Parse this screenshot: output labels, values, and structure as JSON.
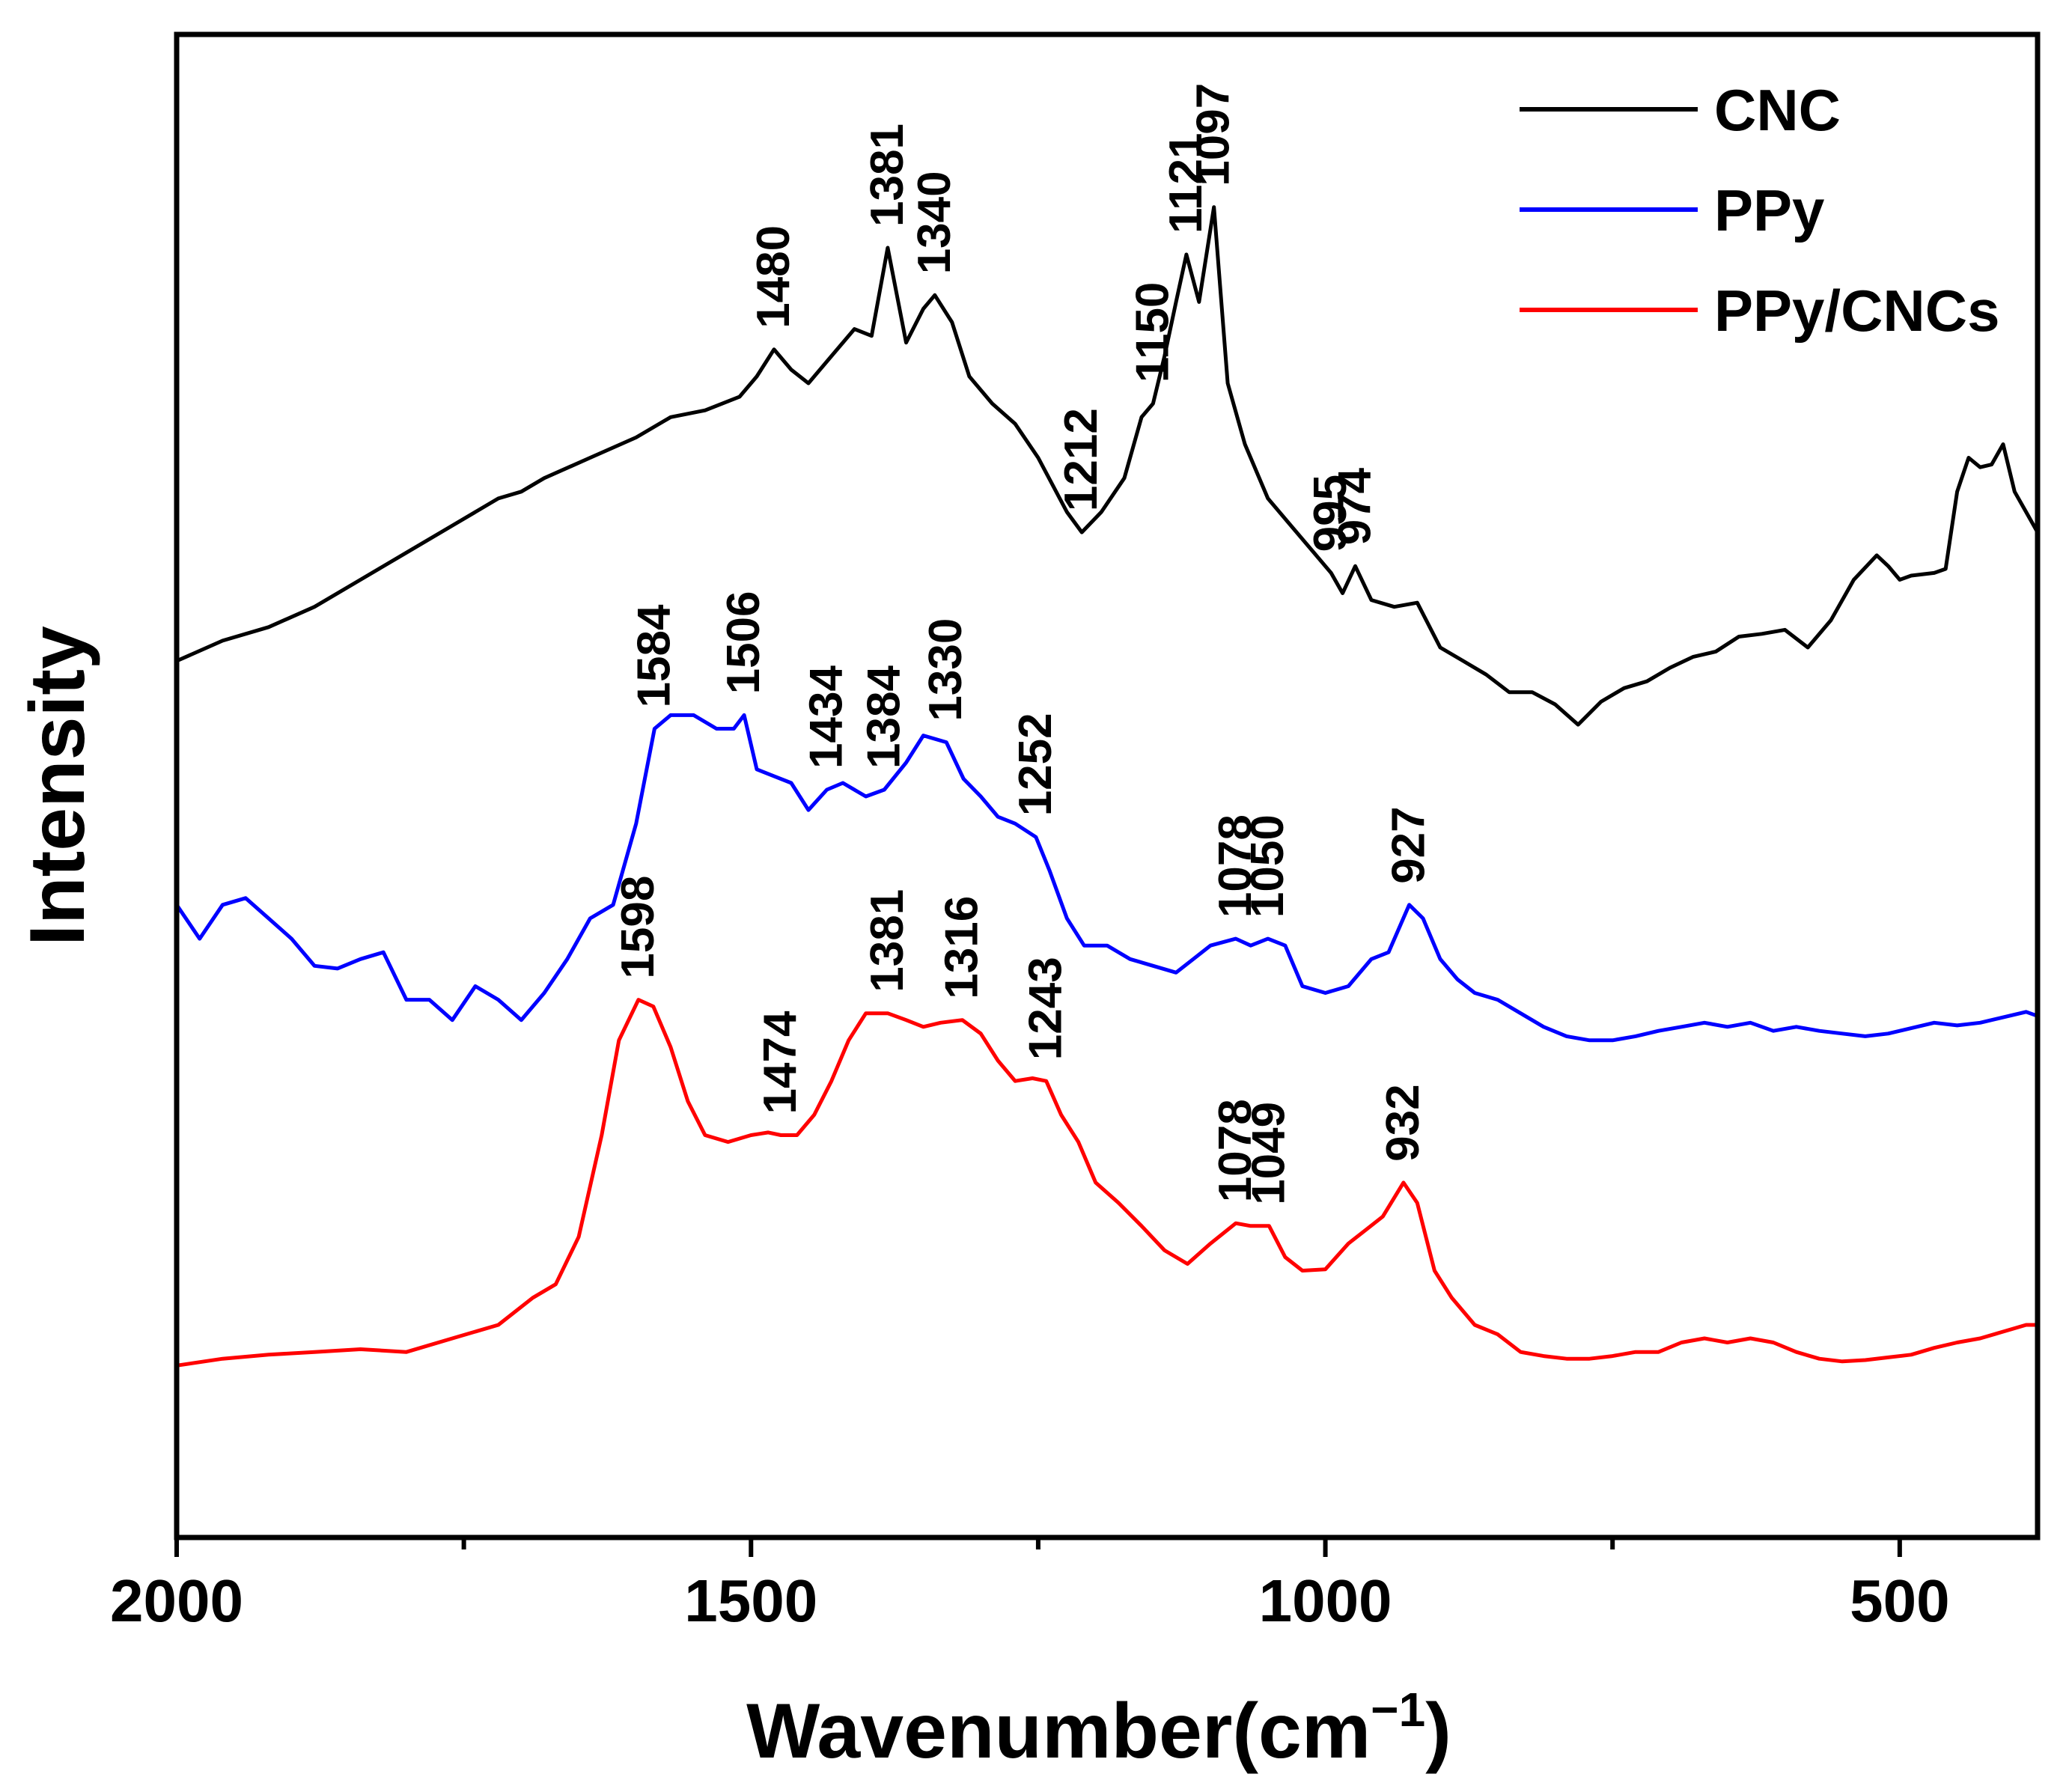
{
  "chart_data": {
    "type": "line",
    "title": "",
    "xlabel": "Wavenumber(cm",
    "xlabel_unit_exponent": "−1",
    "xlabel_close": ")",
    "ylabel": "Intensity",
    "xlim": [
      2000,
      380
    ],
    "ylim": [
      0,
      100
    ],
    "x_reversed": true,
    "xticks_major": [
      2000,
      1500,
      1000,
      500
    ],
    "xtick_labels": [
      "2000",
      "1500",
      "1000",
      "500"
    ],
    "xticks_minor": [
      1750,
      1250,
      750
    ],
    "grid": false,
    "legend_position": "top-right",
    "y_ticks_shown": false,
    "series": [
      {
        "name": "CNC",
        "color": "#000000",
        "x": [
          2000,
          1960,
          1920,
          1880,
          1840,
          1800,
          1760,
          1720,
          1700,
          1680,
          1640,
          1600,
          1570,
          1540,
          1510,
          1495,
          1480,
          1465,
          1450,
          1430,
          1410,
          1395,
          1381,
          1365,
          1350,
          1340,
          1325,
          1310,
          1290,
          1270,
          1250,
          1225,
          1212,
          1195,
          1175,
          1160,
          1150,
          1140,
          1130,
          1121,
          1110,
          1097,
          1085,
          1070,
          1050,
          1030,
          1010,
          995,
          985,
          974,
          960,
          940,
          920,
          900,
          880,
          860,
          840,
          820,
          800,
          780,
          760,
          740,
          720,
          700,
          680,
          660,
          640,
          620,
          600,
          580,
          560,
          540,
          520,
          510,
          500,
          490,
          470,
          460,
          450,
          440,
          430,
          420,
          410,
          400,
          390,
          380
        ],
        "values": [
          59.5,
          61,
          62,
          63.5,
          65.5,
          67.5,
          69.5,
          71.5,
          72,
          73,
          74.5,
          76,
          77.5,
          78,
          79,
          80.5,
          82.5,
          81,
          80,
          82,
          84,
          83.5,
          90,
          83,
          85.5,
          86.5,
          84.5,
          80.5,
          78.5,
          77,
          74.5,
          70.5,
          69,
          70.5,
          73,
          77.5,
          78.5,
          82,
          86,
          89.5,
          86,
          93,
          80,
          75.5,
          71.5,
          69.5,
          67.5,
          66,
          64.5,
          66.5,
          64,
          63.5,
          63.8,
          60.5,
          59.5,
          58.5,
          57.2,
          57.2,
          56.3,
          54.8,
          56.5,
          57.5,
          58,
          59,
          59.8,
          60.2,
          61.3,
          61.5,
          61.8,
          60.5,
          62.5,
          65.5,
          67.3,
          66.5,
          65.5,
          65.8,
          66,
          66.3,
          72,
          74.5,
          73.8,
          74,
          75.5,
          72,
          70.5,
          69
        ]
      },
      {
        "name": "PPy",
        "color": "#0000ff",
        "x": [
          2000,
          1980,
          1960,
          1940,
          1920,
          1900,
          1880,
          1860,
          1840,
          1820,
          1800,
          1780,
          1760,
          1740,
          1720,
          1700,
          1680,
          1660,
          1640,
          1620,
          1600,
          1584,
          1570,
          1550,
          1530,
          1515,
          1506,
          1495,
          1480,
          1465,
          1450,
          1434,
          1420,
          1400,
          1384,
          1365,
          1350,
          1330,
          1315,
          1300,
          1285,
          1270,
          1252,
          1240,
          1225,
          1210,
          1190,
          1170,
          1150,
          1130,
          1115,
          1100,
          1078,
          1065,
          1050,
          1035,
          1020,
          1000,
          980,
          960,
          945,
          927,
          915,
          900,
          885,
          870,
          850,
          830,
          810,
          790,
          770,
          750,
          730,
          710,
          690,
          670,
          650,
          630,
          610,
          590,
          570,
          550,
          530,
          510,
          490,
          470,
          450,
          430,
          410,
          390,
          380
        ],
        "values": [
          41.5,
          39,
          41.5,
          42,
          40.5,
          39,
          37,
          36.8,
          37.5,
          38,
          34.5,
          34.5,
          33,
          35.5,
          34.5,
          33,
          35,
          37.5,
          40.5,
          41.5,
          47.5,
          54.5,
          55.5,
          55.5,
          54.5,
          54.5,
          55.5,
          51.5,
          51,
          50.5,
          48.5,
          50,
          50.5,
          49.5,
          50,
          52,
          54,
          53.5,
          50.8,
          49.5,
          48,
          47.5,
          46.5,
          44,
          40.5,
          38.5,
          38.5,
          37.5,
          37,
          36.5,
          37.5,
          38.5,
          39,
          38.5,
          39,
          38.5,
          35.5,
          35,
          35.5,
          37.5,
          38,
          41.5,
          40.5,
          37.5,
          36,
          35,
          34.5,
          33.5,
          32.5,
          31.8,
          31.5,
          31.5,
          31.8,
          32.2,
          32.5,
          32.8,
          32.5,
          32.8,
          32.2,
          32.5,
          32.2,
          32,
          31.8,
          32,
          32.4,
          32.8,
          32.6,
          32.8,
          33.2,
          33.6,
          33.3
        ]
      },
      {
        "name": "PPy/CNCs",
        "color": "#ff0000",
        "x": [
          2000,
          1960,
          1920,
          1880,
          1840,
          1800,
          1760,
          1720,
          1690,
          1670,
          1650,
          1630,
          1615,
          1598,
          1585,
          1570,
          1555,
          1540,
          1520,
          1500,
          1485,
          1474,
          1460,
          1445,
          1430,
          1415,
          1400,
          1381,
          1365,
          1350,
          1335,
          1316,
          1300,
          1285,
          1270,
          1255,
          1243,
          1230,
          1215,
          1200,
          1180,
          1160,
          1140,
          1120,
          1100,
          1078,
          1065,
          1049,
          1035,
          1020,
          1000,
          980,
          965,
          950,
          932,
          920,
          905,
          890,
          870,
          850,
          830,
          810,
          790,
          770,
          750,
          730,
          710,
          690,
          670,
          650,
          630,
          610,
          590,
          570,
          550,
          530,
          510,
          490,
          470,
          450,
          430,
          410,
          390,
          380
        ],
        "values": [
          7.5,
          8,
          8.3,
          8.5,
          8.7,
          8.5,
          9.5,
          10.5,
          12.5,
          13.5,
          17,
          24.5,
          31.5,
          34.5,
          34,
          31,
          27,
          24.5,
          24,
          24.5,
          24.7,
          24.5,
          24.5,
          26,
          28.5,
          31.5,
          33.5,
          33.5,
          33,
          32.5,
          32.8,
          33,
          32,
          30,
          28.5,
          28.7,
          28.5,
          26,
          24,
          21,
          19.5,
          17.8,
          16,
          15,
          16.5,
          18,
          17.8,
          17.8,
          15.5,
          14.5,
          14.6,
          16.5,
          17.5,
          18.5,
          21,
          19.5,
          14.5,
          12.5,
          10.5,
          9.8,
          8.5,
          8.2,
          8,
          8,
          8.2,
          8.5,
          8.5,
          9.2,
          9.5,
          9.2,
          9.5,
          9.2,
          8.5,
          8,
          7.8,
          7.9,
          8.1,
          8.3,
          8.8,
          9.2,
          9.5,
          10,
          10.5,
          10.5
        ]
      }
    ],
    "annotations": [
      {
        "series": "CNC",
        "text": "1480",
        "x": 1480
      },
      {
        "series": "CNC",
        "text": "1381",
        "x": 1381
      },
      {
        "series": "CNC",
        "text": "1340",
        "x": 1340
      },
      {
        "series": "CNC",
        "text": "1212",
        "x": 1212
      },
      {
        "series": "CNC",
        "text": "1150",
        "x": 1150
      },
      {
        "series": "CNC",
        "text": "1121",
        "x": 1121
      },
      {
        "series": "CNC",
        "text": "1097",
        "x": 1097
      },
      {
        "series": "CNC",
        "text": "995",
        "x": 995
      },
      {
        "series": "CNC",
        "text": "974",
        "x": 974
      },
      {
        "series": "PPy",
        "text": "1584",
        "x": 1584
      },
      {
        "series": "PPy",
        "text": "1506",
        "x": 1506
      },
      {
        "series": "PPy",
        "text": "1434",
        "x": 1434
      },
      {
        "series": "PPy",
        "text": "1384",
        "x": 1384
      },
      {
        "series": "PPy",
        "text": "1330",
        "x": 1330
      },
      {
        "series": "PPy",
        "text": "1252",
        "x": 1252
      },
      {
        "series": "PPy",
        "text": "1078",
        "x": 1078
      },
      {
        "series": "PPy",
        "text": "1050",
        "x": 1050
      },
      {
        "series": "PPy",
        "text": "927",
        "x": 927
      },
      {
        "series": "PPy/CNCs",
        "text": "1598",
        "x": 1598
      },
      {
        "series": "PPy/CNCs",
        "text": "1474",
        "x": 1474
      },
      {
        "series": "PPy/CNCs",
        "text": "1381",
        "x": 1381
      },
      {
        "series": "PPy/CNCs",
        "text": "1316",
        "x": 1316
      },
      {
        "series": "PPy/CNCs",
        "text": "1243",
        "x": 1243
      },
      {
        "series": "PPy/CNCs",
        "text": "1078",
        "x": 1078
      },
      {
        "series": "PPy/CNCs",
        "text": "1049",
        "x": 1049
      },
      {
        "series": "PPy/CNCs",
        "text": "932",
        "x": 932
      }
    ]
  }
}
